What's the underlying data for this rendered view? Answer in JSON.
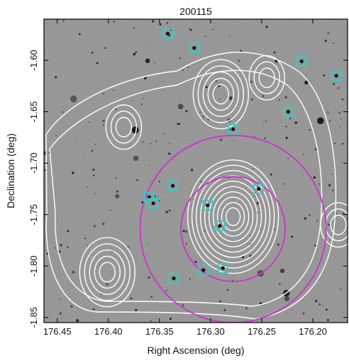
{
  "title": "200115",
  "x_axis": {
    "label": "Right Ascension (deg)",
    "range": [
      176.463,
      176.166
    ],
    "ticks": [
      "176.45",
      "176.40",
      "176.35",
      "176.30",
      "176.25",
      "176.20"
    ]
  },
  "y_axis": {
    "label": "Declination (deg)",
    "range": [
      -1.855,
      -1.56
    ],
    "ticks": [
      "-1.60",
      "-1.65",
      "-1.70",
      "-1.75",
      "-1.80",
      "-1.85"
    ]
  },
  "image": {
    "type": "grayscale-sky-field",
    "background_color": "#8a8a8a"
  },
  "colors": {
    "contours": "#ffffff",
    "circles": "#cc33cc",
    "members": "#33cccc",
    "axes": "#000000"
  },
  "circles": [
    {
      "ra": 176.278,
      "dec": -1.764,
      "radius_deg": 0.091
    },
    {
      "ra": 176.278,
      "dec": -1.764,
      "radius_deg": 0.051
    }
  ],
  "members": [
    {
      "ra": 176.342,
      "dec": -1.574
    },
    {
      "ra": 176.316,
      "dec": -1.588
    },
    {
      "ra": 176.211,
      "dec": -1.601
    },
    {
      "ra": 176.177,
      "dec": -1.615
    },
    {
      "ra": 176.224,
      "dec": -1.65
    },
    {
      "ra": 176.278,
      "dec": -1.667
    },
    {
      "ra": 176.337,
      "dec": -1.722
    },
    {
      "ra": 176.253,
      "dec": -1.725
    },
    {
      "ra": 176.36,
      "dec": -1.733
    },
    {
      "ra": 176.356,
      "dec": -1.739
    },
    {
      "ra": 176.303,
      "dec": -1.741
    },
    {
      "ra": 176.291,
      "dec": -1.761
    },
    {
      "ra": 176.307,
      "dec": -1.804
    },
    {
      "ra": 176.288,
      "dec": -1.802
    },
    {
      "ra": 176.336,
      "dec": -1.812
    }
  ],
  "contour_peaks": [
    {
      "ra": 176.278,
      "dec": -1.752,
      "levels": 10
    },
    {
      "ra": 176.29,
      "dec": -1.633,
      "levels": 5
    },
    {
      "ra": 176.401,
      "dec": -1.806,
      "levels": 5
    },
    {
      "ra": 176.245,
      "dec": -1.617,
      "levels": 3
    },
    {
      "ra": 176.385,
      "dec": -1.665,
      "levels": 3
    },
    {
      "ra": 176.175,
      "dec": -1.76,
      "levels": 3
    }
  ]
}
